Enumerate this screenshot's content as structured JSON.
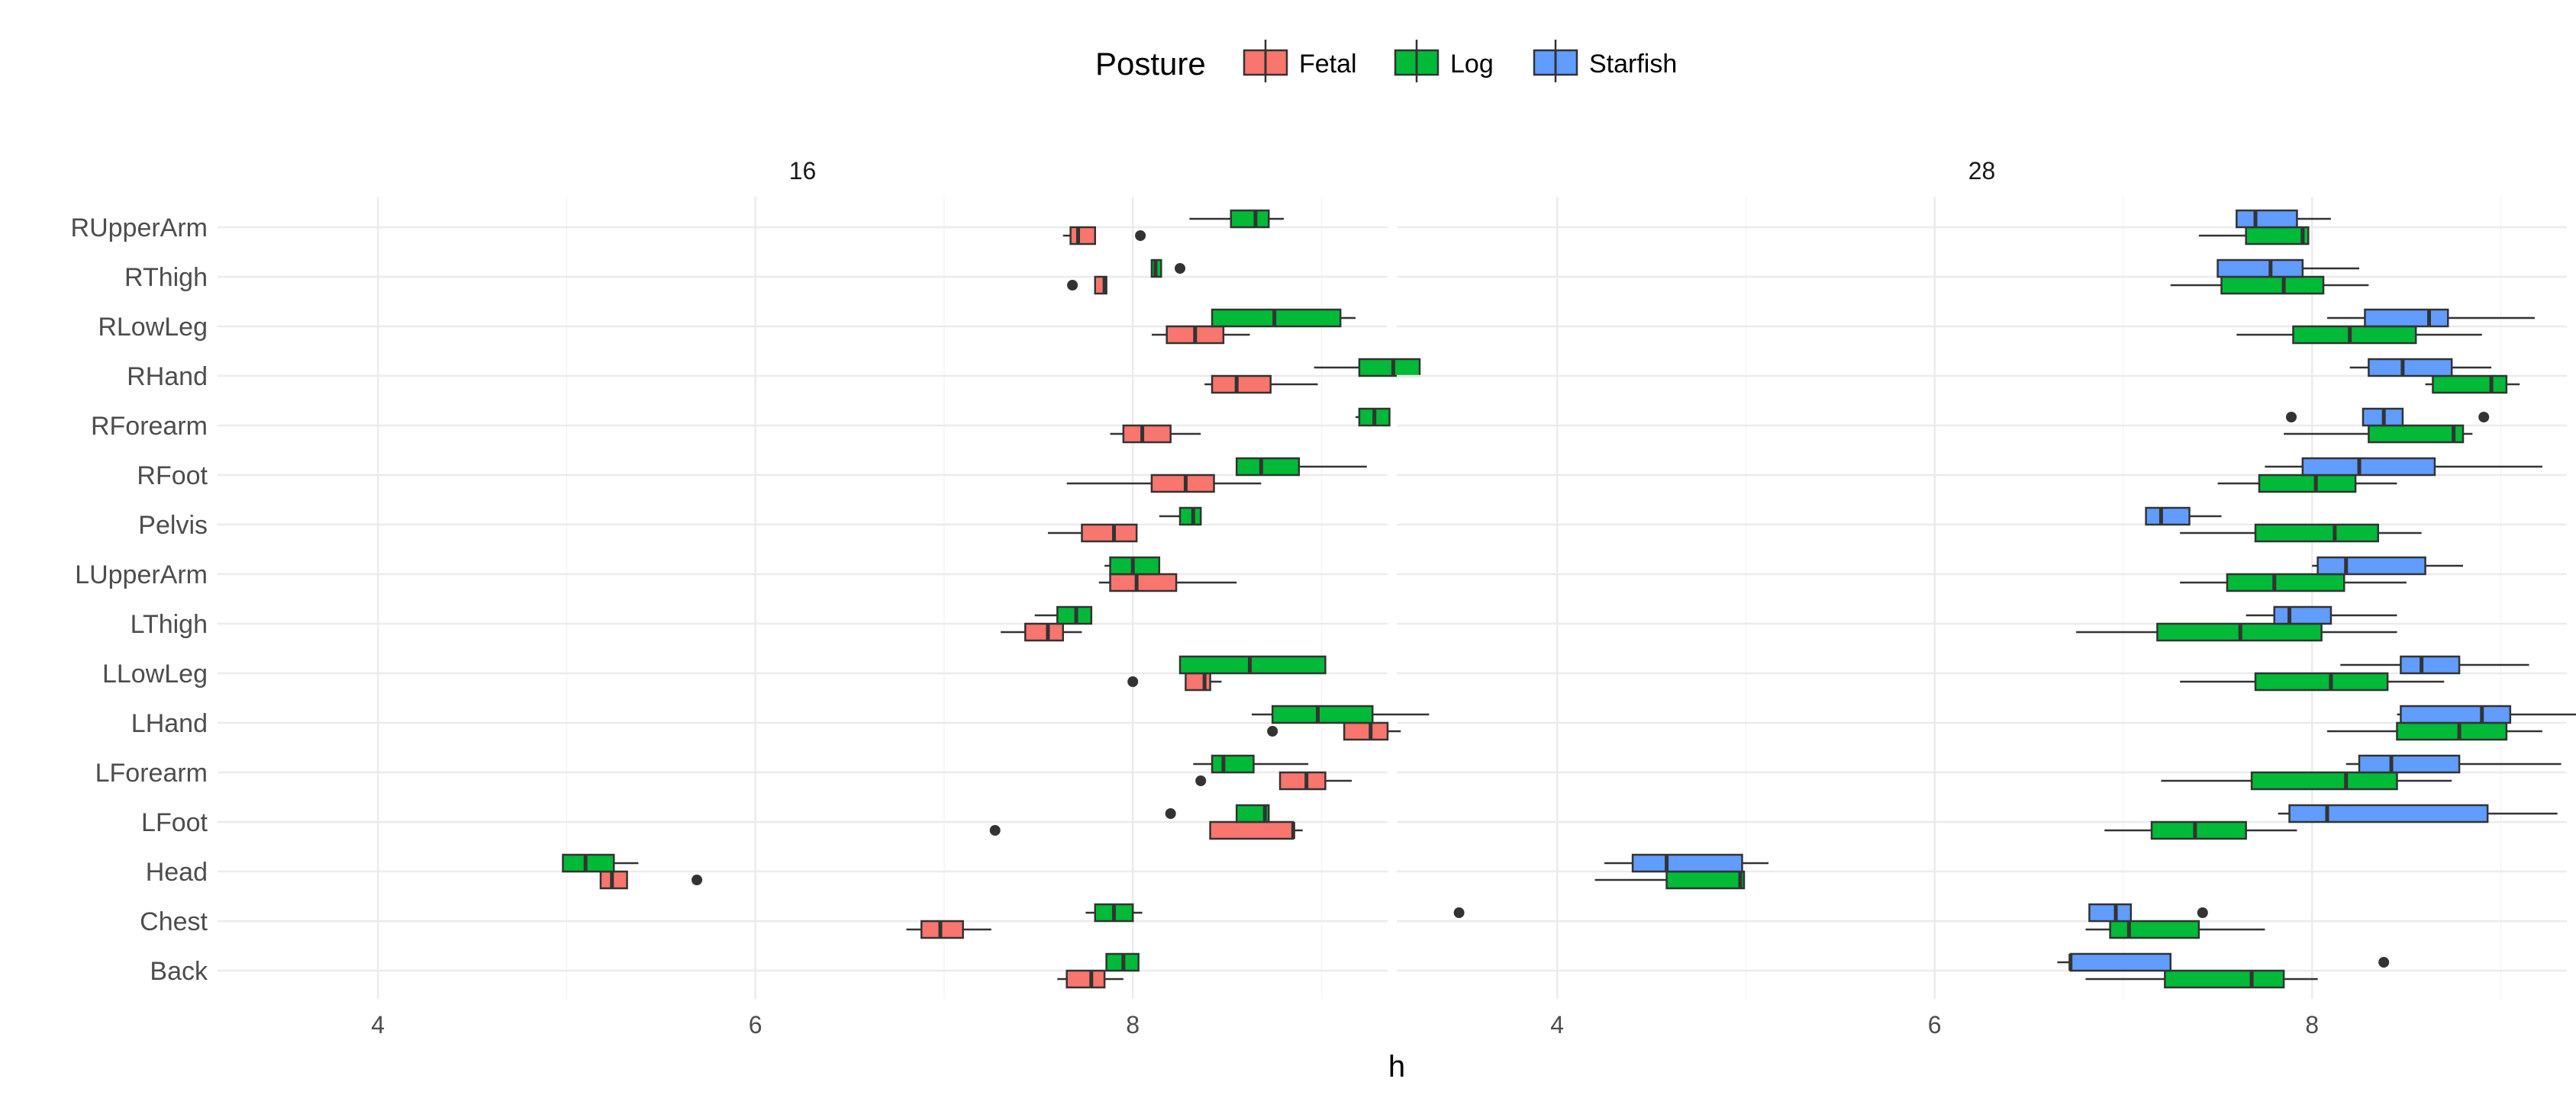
{
  "chart_data": {
    "type": "boxplot",
    "xlabel": "h",
    "ylabel": "",
    "legend": {
      "title": "Posture",
      "position": "top",
      "entries": [
        "Fetal",
        "Log",
        "Starfish"
      ]
    },
    "colors": {
      "Fetal": "#F8766D",
      "Log": "#00BA38",
      "Starfish": "#619CFF"
    },
    "categories": [
      "RUpperArm",
      "RThigh",
      "RLowLeg",
      "RHand",
      "RForearm",
      "RFoot",
      "Pelvis",
      "LUpperArm",
      "LThigh",
      "LLowLeg",
      "LHand",
      "LForearm",
      "LFoot",
      "Head",
      "Chest",
      "Back"
    ],
    "xlim": [
      3.15,
      9.35
    ],
    "xticks": [
      "4",
      "6",
      "8"
    ],
    "xtick_values": [
      4,
      6,
      8
    ],
    "grid": true,
    "panels": [
      {
        "title": "16",
        "groups": {
          "RUpperArm": [
            {
              "series": "Fetal",
              "whislo": 7.63,
              "q1": 7.67,
              "med": 7.71,
              "q3": 7.8,
              "whishi": 7.8,
              "fliers": [
                8.04
              ]
            },
            {
              "series": "Log",
              "whislo": 8.3,
              "q1": 8.52,
              "med": 8.65,
              "q3": 8.72,
              "whishi": 8.8,
              "fliers": []
            }
          ],
          "RThigh": [
            {
              "series": "Fetal",
              "whislo": 7.8,
              "q1": 7.8,
              "med": 7.85,
              "q3": 7.86,
              "whishi": 7.86,
              "fliers": [
                7.68
              ]
            },
            {
              "series": "Log",
              "whislo": 8.1,
              "q1": 8.1,
              "med": 8.12,
              "q3": 8.15,
              "whishi": 8.15,
              "fliers": [
                8.25
              ]
            }
          ],
          "RLowLeg": [
            {
              "series": "Fetal",
              "whislo": 8.1,
              "q1": 8.18,
              "med": 8.33,
              "q3": 8.48,
              "whishi": 8.62,
              "fliers": []
            },
            {
              "series": "Log",
              "whislo": 8.42,
              "q1": 8.42,
              "med": 8.75,
              "q3": 9.1,
              "whishi": 9.18,
              "fliers": []
            }
          ],
          "RHand": [
            {
              "series": "Fetal",
              "whislo": 8.38,
              "q1": 8.42,
              "med": 8.55,
              "q3": 8.73,
              "whishi": 8.98,
              "fliers": []
            },
            {
              "series": "Log",
              "whislo": 8.96,
              "q1": 9.2,
              "med": 9.38,
              "q3": 9.52,
              "whishi": 9.52,
              "fliers": []
            }
          ],
          "RForearm": [
            {
              "series": "Fetal",
              "whislo": 7.88,
              "q1": 7.95,
              "med": 8.05,
              "q3": 8.2,
              "whishi": 8.36,
              "fliers": []
            },
            {
              "series": "Log",
              "whislo": 9.18,
              "q1": 9.2,
              "med": 9.28,
              "q3": 9.36,
              "whishi": 9.36,
              "fliers": []
            }
          ],
          "RFoot": [
            {
              "series": "Fetal",
              "whislo": 7.65,
              "q1": 8.1,
              "med": 8.28,
              "q3": 8.43,
              "whishi": 8.68,
              "fliers": []
            },
            {
              "series": "Log",
              "whislo": 8.55,
              "q1": 8.55,
              "med": 8.68,
              "q3": 8.88,
              "whishi": 9.24,
              "fliers": []
            }
          ],
          "Pelvis": [
            {
              "series": "Fetal",
              "whislo": 7.55,
              "q1": 7.73,
              "med": 7.9,
              "q3": 8.02,
              "whishi": 8.02,
              "fliers": []
            },
            {
              "series": "Log",
              "whislo": 8.14,
              "q1": 8.25,
              "med": 8.32,
              "q3": 8.36,
              "whishi": 8.36,
              "fliers": []
            }
          ],
          "LUpperArm": [
            {
              "series": "Fetal",
              "whislo": 7.82,
              "q1": 7.88,
              "med": 8.02,
              "q3": 8.23,
              "whishi": 8.55,
              "fliers": []
            },
            {
              "series": "Log",
              "whislo": 7.85,
              "q1": 7.88,
              "med": 8.0,
              "q3": 8.14,
              "whishi": 8.14,
              "fliers": []
            }
          ],
          "LThigh": [
            {
              "series": "Fetal",
              "whislo": 7.3,
              "q1": 7.43,
              "med": 7.55,
              "q3": 7.63,
              "whishi": 7.73,
              "fliers": []
            },
            {
              "series": "Log",
              "whislo": 7.48,
              "q1": 7.6,
              "med": 7.7,
              "q3": 7.78,
              "whishi": 7.78,
              "fliers": []
            }
          ],
          "LLowLeg": [
            {
              "series": "Fetal",
              "whislo": 8.28,
              "q1": 8.28,
              "med": 8.38,
              "q3": 8.41,
              "whishi": 8.47,
              "fliers": [
                8.0
              ]
            },
            {
              "series": "Log",
              "whislo": 8.25,
              "q1": 8.25,
              "med": 8.62,
              "q3": 9.02,
              "whishi": 9.02,
              "fliers": []
            }
          ],
          "LHand": [
            {
              "series": "Fetal",
              "whislo": 9.12,
              "q1": 9.12,
              "med": 9.26,
              "q3": 9.35,
              "whishi": 9.42,
              "fliers": [
                8.74
              ]
            },
            {
              "series": "Log",
              "whislo": 8.63,
              "q1": 8.74,
              "med": 8.98,
              "q3": 9.27,
              "whishi": 9.57,
              "fliers": []
            }
          ],
          "LForearm": [
            {
              "series": "Fetal",
              "whislo": 8.78,
              "q1": 8.78,
              "med": 8.92,
              "q3": 9.02,
              "whishi": 9.16,
              "fliers": [
                8.36
              ]
            },
            {
              "series": "Log",
              "whislo": 8.32,
              "q1": 8.42,
              "med": 8.48,
              "q3": 8.64,
              "whishi": 8.93,
              "fliers": []
            }
          ],
          "LFoot": [
            {
              "series": "Fetal",
              "whislo": 8.41,
              "q1": 8.41,
              "med": 8.85,
              "q3": 8.85,
              "whishi": 8.9,
              "fliers": [
                7.27
              ]
            },
            {
              "series": "Log",
              "whislo": 8.55,
              "q1": 8.55,
              "med": 8.7,
              "q3": 8.72,
              "whishi": 8.72,
              "fliers": [
                8.2
              ]
            }
          ],
          "Head": [
            {
              "series": "Fetal",
              "whislo": 5.18,
              "q1": 5.18,
              "med": 5.24,
              "q3": 5.32,
              "whishi": 5.32,
              "fliers": [
                5.69
              ]
            },
            {
              "series": "Log",
              "whislo": 4.98,
              "q1": 4.98,
              "med": 5.1,
              "q3": 5.25,
              "whishi": 5.38,
              "fliers": []
            }
          ],
          "Chest": [
            {
              "series": "Fetal",
              "whislo": 6.8,
              "q1": 6.88,
              "med": 6.98,
              "q3": 7.1,
              "whishi": 7.25,
              "fliers": []
            },
            {
              "series": "Log",
              "whislo": 7.75,
              "q1": 7.8,
              "med": 7.9,
              "q3": 8.0,
              "whishi": 8.05,
              "fliers": []
            }
          ],
          "Back": [
            {
              "series": "Fetal",
              "whislo": 7.6,
              "q1": 7.65,
              "med": 7.78,
              "q3": 7.85,
              "whishi": 7.95,
              "fliers": []
            },
            {
              "series": "Log",
              "whislo": 7.86,
              "q1": 7.86,
              "med": 7.95,
              "q3": 8.03,
              "whishi": 8.03,
              "fliers": []
            }
          ]
        }
      },
      {
        "title": "28",
        "groups": {
          "RUpperArm": [
            {
              "series": "Log",
              "whislo": 7.4,
              "q1": 7.65,
              "med": 7.95,
              "q3": 7.98,
              "whishi": 7.98,
              "fliers": []
            },
            {
              "series": "Starfish",
              "whislo": 7.6,
              "q1": 7.6,
              "med": 7.7,
              "q3": 7.92,
              "whishi": 8.1,
              "fliers": []
            }
          ],
          "RThigh": [
            {
              "series": "Log",
              "whislo": 7.25,
              "q1": 7.52,
              "med": 7.85,
              "q3": 8.06,
              "whishi": 8.3,
              "fliers": []
            },
            {
              "series": "Starfish",
              "whislo": 7.5,
              "q1": 7.5,
              "med": 7.78,
              "q3": 7.95,
              "whishi": 8.25,
              "fliers": []
            }
          ],
          "RLowLeg": [
            {
              "series": "Log",
              "whislo": 7.6,
              "q1": 7.9,
              "med": 8.2,
              "q3": 8.55,
              "whishi": 8.9,
              "fliers": []
            },
            {
              "series": "Starfish",
              "whislo": 8.08,
              "q1": 8.28,
              "med": 8.62,
              "q3": 8.72,
              "whishi": 9.18,
              "fliers": []
            }
          ],
          "RHand": [
            {
              "series": "Log",
              "whislo": 8.6,
              "q1": 8.64,
              "med": 8.95,
              "q3": 9.03,
              "whishi": 9.1,
              "fliers": []
            },
            {
              "series": "Starfish",
              "whislo": 8.2,
              "q1": 8.3,
              "med": 8.48,
              "q3": 8.74,
              "whishi": 8.95,
              "fliers": []
            }
          ],
          "RForearm": [
            {
              "series": "Log",
              "whislo": 7.85,
              "q1": 8.3,
              "med": 8.75,
              "q3": 8.8,
              "whishi": 8.85,
              "fliers": []
            },
            {
              "series": "Starfish",
              "whislo": 8.27,
              "q1": 8.27,
              "med": 8.38,
              "q3": 8.48,
              "whishi": 8.48,
              "fliers": [
                7.89,
                8.91
              ]
            }
          ],
          "RFoot": [
            {
              "series": "Log",
              "whislo": 7.5,
              "q1": 7.72,
              "med": 8.02,
              "q3": 8.23,
              "whishi": 8.45,
              "fliers": []
            },
            {
              "series": "Starfish",
              "whislo": 7.75,
              "q1": 7.95,
              "med": 8.25,
              "q3": 8.65,
              "whishi": 9.22,
              "fliers": []
            }
          ],
          "Pelvis": [
            {
              "series": "Log",
              "whislo": 7.3,
              "q1": 7.7,
              "med": 8.12,
              "q3": 8.35,
              "whishi": 8.58,
              "fliers": []
            },
            {
              "series": "Starfish",
              "whislo": 7.12,
              "q1": 7.12,
              "med": 7.2,
              "q3": 7.35,
              "whishi": 7.52,
              "fliers": []
            }
          ],
          "LUpperArm": [
            {
              "series": "Log",
              "whislo": 7.3,
              "q1": 7.55,
              "med": 7.8,
              "q3": 8.17,
              "whishi": 8.5,
              "fliers": []
            },
            {
              "series": "Starfish",
              "whislo": 8.0,
              "q1": 8.03,
              "med": 8.18,
              "q3": 8.6,
              "whishi": 8.8,
              "fliers": []
            }
          ],
          "LThigh": [
            {
              "series": "Log",
              "whislo": 6.75,
              "q1": 7.18,
              "med": 7.62,
              "q3": 8.05,
              "whishi": 8.45,
              "fliers": []
            },
            {
              "series": "Starfish",
              "whislo": 7.65,
              "q1": 7.8,
              "med": 7.88,
              "q3": 8.1,
              "whishi": 8.45,
              "fliers": []
            }
          ],
          "LLowLeg": [
            {
              "series": "Log",
              "whislo": 7.3,
              "q1": 7.7,
              "med": 8.1,
              "q3": 8.4,
              "whishi": 8.7,
              "fliers": []
            },
            {
              "series": "Starfish",
              "whislo": 8.15,
              "q1": 8.47,
              "med": 8.58,
              "q3": 8.78,
              "whishi": 9.15,
              "fliers": []
            }
          ],
          "LHand": [
            {
              "series": "Log",
              "whislo": 8.08,
              "q1": 8.45,
              "med": 8.78,
              "q3": 9.03,
              "whishi": 9.22,
              "fliers": []
            },
            {
              "series": "Starfish",
              "whislo": 8.45,
              "q1": 8.47,
              "med": 8.9,
              "q3": 9.05,
              "whishi": 9.5,
              "fliers": []
            }
          ],
          "LForearm": [
            {
              "series": "Log",
              "whislo": 7.2,
              "q1": 7.68,
              "med": 8.18,
              "q3": 8.45,
              "whishi": 8.74,
              "fliers": []
            },
            {
              "series": "Starfish",
              "whislo": 8.18,
              "q1": 8.25,
              "med": 8.42,
              "q3": 8.78,
              "whishi": 9.32,
              "fliers": []
            }
          ],
          "LFoot": [
            {
              "series": "Log",
              "whislo": 6.9,
              "q1": 7.15,
              "med": 7.38,
              "q3": 7.65,
              "whishi": 7.92,
              "fliers": []
            },
            {
              "series": "Starfish",
              "whislo": 7.82,
              "q1": 7.88,
              "med": 8.08,
              "q3": 8.93,
              "whishi": 9.3,
              "fliers": []
            }
          ],
          "Head": [
            {
              "series": "Log",
              "whislo": 4.2,
              "q1": 4.58,
              "med": 4.97,
              "q3": 4.99,
              "whishi": 4.99,
              "fliers": []
            },
            {
              "series": "Starfish",
              "whislo": 4.25,
              "q1": 4.4,
              "med": 4.58,
              "q3": 4.98,
              "whishi": 5.12,
              "fliers": []
            }
          ],
          "Chest": [
            {
              "series": "Log",
              "whislo": 6.8,
              "q1": 6.93,
              "med": 7.03,
              "q3": 7.4,
              "whishi": 7.75,
              "fliers": []
            },
            {
              "series": "Starfish",
              "whislo": 6.82,
              "q1": 6.82,
              "med": 6.96,
              "q3": 7.04,
              "whishi": 7.04,
              "fliers": [
                3.48,
                7.42
              ]
            }
          ],
          "Back": [
            {
              "series": "Log",
              "whislo": 6.8,
              "q1": 7.22,
              "med": 7.68,
              "q3": 7.85,
              "whishi": 8.03,
              "fliers": []
            },
            {
              "series": "Starfish",
              "whislo": 6.65,
              "q1": 6.72,
              "med": 6.72,
              "q3": 7.25,
              "whishi": 7.25,
              "fliers": [
                8.38
              ]
            }
          ]
        }
      }
    ]
  }
}
